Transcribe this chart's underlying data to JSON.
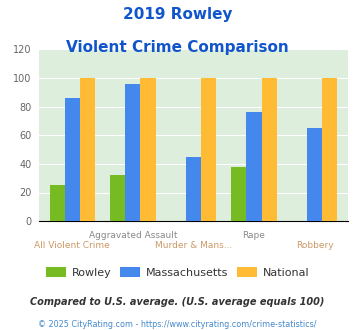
{
  "title_line1": "2019 Rowley",
  "title_line2": "Violent Crime Comparison",
  "categories": [
    "All Violent Crime",
    "Aggravated Assault",
    "Murder & Mans...",
    "Rape",
    "Robbery"
  ],
  "series": {
    "Rowley": [
      25,
      32,
      0,
      38,
      0
    ],
    "Massachusetts": [
      86,
      96,
      45,
      76,
      65
    ],
    "National": [
      100,
      100,
      100,
      100,
      100
    ]
  },
  "colors": {
    "Rowley": "#77bb22",
    "Massachusetts": "#4488ee",
    "National": "#ffbb33"
  },
  "ylim": [
    0,
    120
  ],
  "yticks": [
    0,
    20,
    40,
    60,
    80,
    100,
    120
  ],
  "plot_bg": "#ddeedd",
  "title_color": "#1155cc",
  "label_top_color": "#888888",
  "label_bot_color": "#cc9966",
  "footer1": "Compared to U.S. average. (U.S. average equals 100)",
  "footer2": "© 2025 CityRating.com - https://www.cityrating.com/crime-statistics/",
  "footer1_color": "#333333",
  "footer2_color": "#4488cc",
  "legend_label_color": "#333333"
}
